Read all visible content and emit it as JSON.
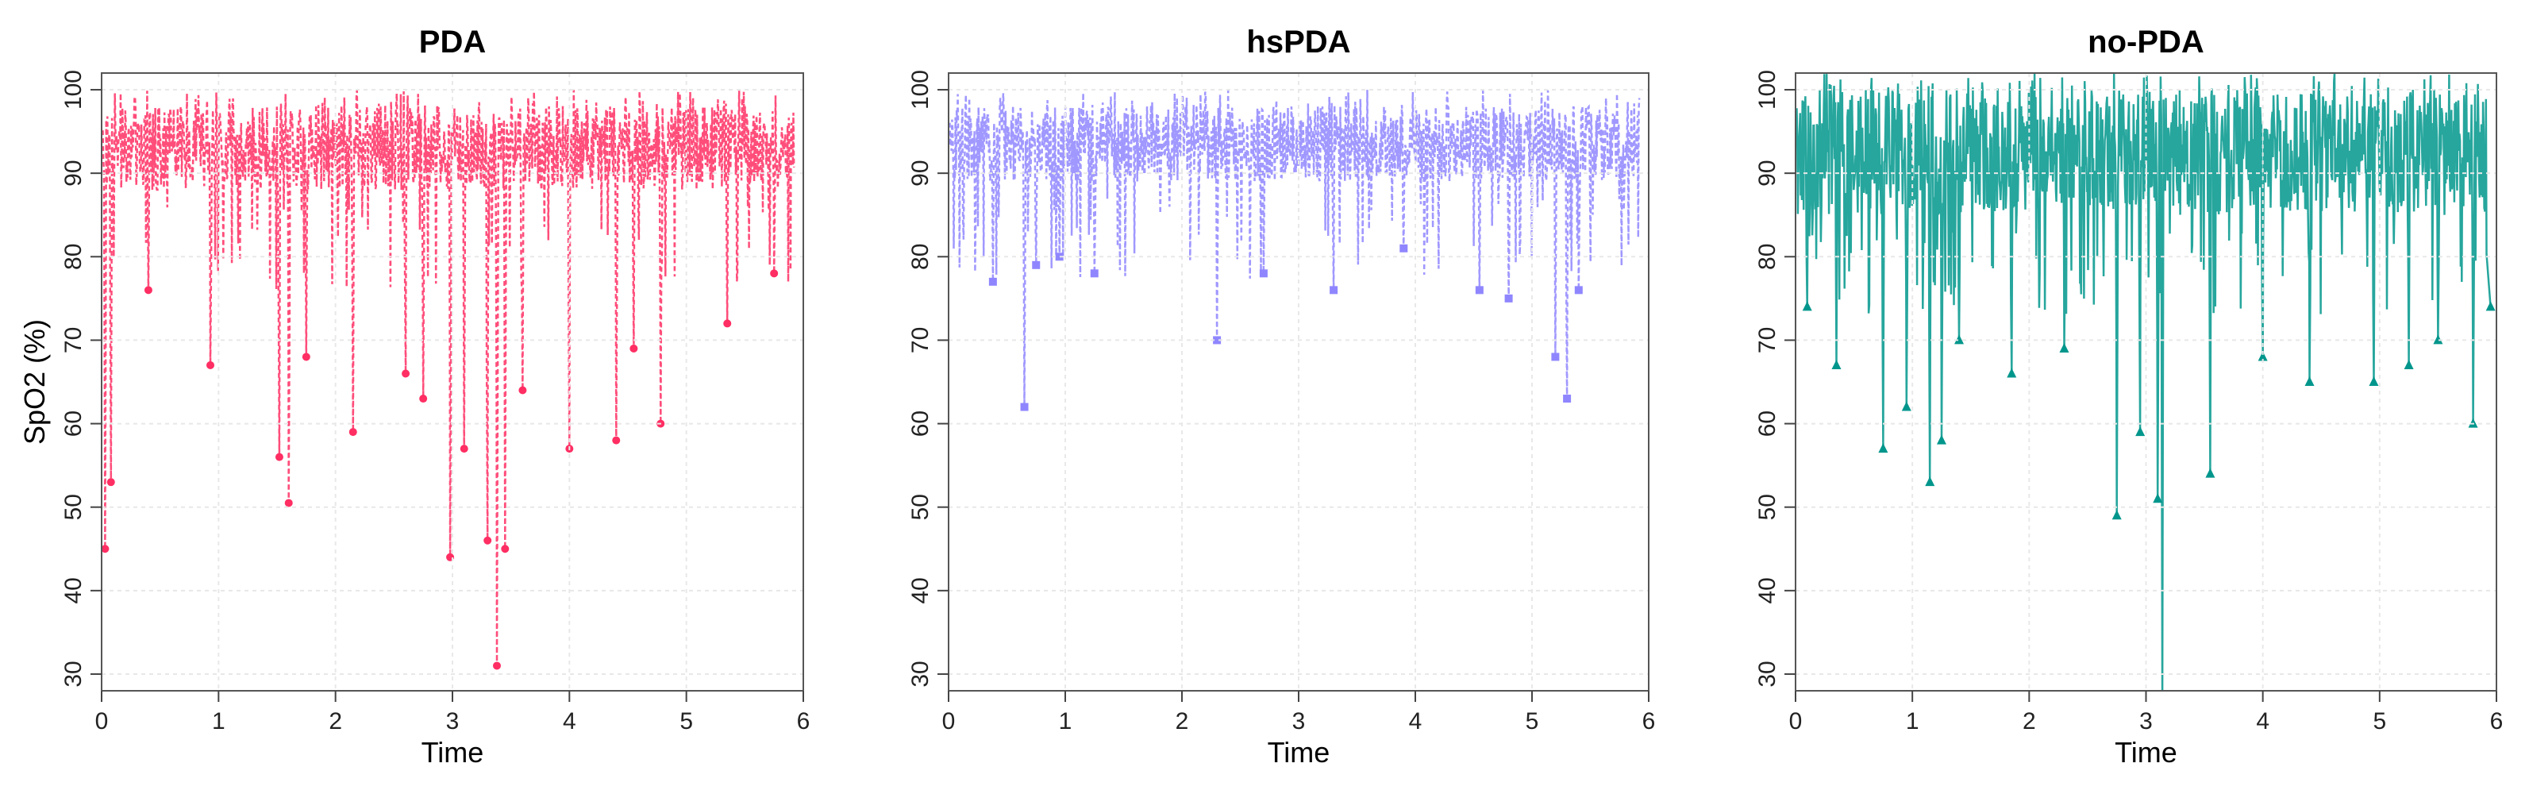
{
  "chart_data": [
    {
      "type": "line",
      "title": "PDA",
      "xlabel": "Time",
      "ylabel": "SpO2 (%)",
      "xlim": [
        0,
        6
      ],
      "ylim": [
        28,
        102
      ],
      "xticks": [
        0,
        1,
        2,
        3,
        4,
        5,
        6
      ],
      "yticks": [
        30,
        40,
        50,
        60,
        70,
        80,
        90,
        100
      ],
      "grid": true,
      "color": "#ff2e63",
      "line_style": "dashed",
      "marker": "circle",
      "band": [
        88,
        98
      ],
      "dips": [
        {
          "x": 0.03,
          "y": 45
        },
        {
          "x": 0.08,
          "y": 53
        },
        {
          "x": 0.4,
          "y": 76
        },
        {
          "x": 0.93,
          "y": 67
        },
        {
          "x": 1.52,
          "y": 56
        },
        {
          "x": 1.6,
          "y": 50.5
        },
        {
          "x": 1.75,
          "y": 68
        },
        {
          "x": 2.15,
          "y": 59
        },
        {
          "x": 2.6,
          "y": 66
        },
        {
          "x": 2.75,
          "y": 63
        },
        {
          "x": 2.98,
          "y": 44
        },
        {
          "x": 3.1,
          "y": 57
        },
        {
          "x": 3.3,
          "y": 46
        },
        {
          "x": 3.38,
          "y": 31
        },
        {
          "x": 3.45,
          "y": 45
        },
        {
          "x": 3.6,
          "y": 64
        },
        {
          "x": 4.0,
          "y": 57
        },
        {
          "x": 4.4,
          "y": 58
        },
        {
          "x": 4.55,
          "y": 69
        },
        {
          "x": 4.78,
          "y": 60
        },
        {
          "x": 5.35,
          "y": 72
        },
        {
          "x": 5.75,
          "y": 78
        }
      ]
    },
    {
      "type": "line",
      "title": "hsPDA",
      "xlabel": "Time",
      "ylabel": "",
      "xlim": [
        0,
        6
      ],
      "ylim": [
        28,
        102
      ],
      "xticks": [
        0,
        1,
        2,
        3,
        4,
        5,
        6
      ],
      "yticks": [
        30,
        40,
        50,
        60,
        70,
        80,
        90,
        100
      ],
      "grid": true,
      "color": "#8f86ff",
      "line_style": "dashed",
      "marker": "square",
      "band": [
        89,
        98
      ],
      "dips": [
        {
          "x": 0.38,
          "y": 77
        },
        {
          "x": 0.65,
          "y": 62
        },
        {
          "x": 0.75,
          "y": 79
        },
        {
          "x": 0.95,
          "y": 80
        },
        {
          "x": 1.25,
          "y": 78
        },
        {
          "x": 2.3,
          "y": 70
        },
        {
          "x": 2.7,
          "y": 78
        },
        {
          "x": 3.3,
          "y": 76
        },
        {
          "x": 3.9,
          "y": 81
        },
        {
          "x": 4.55,
          "y": 76
        },
        {
          "x": 4.8,
          "y": 75
        },
        {
          "x": 5.2,
          "y": 68
        },
        {
          "x": 5.3,
          "y": 63
        },
        {
          "x": 5.4,
          "y": 76
        }
      ]
    },
    {
      "type": "line",
      "title": "no-PDA",
      "xlabel": "Time",
      "ylabel": "",
      "xlim": [
        0,
        6
      ],
      "ylim": [
        28,
        102
      ],
      "xticks": [
        0,
        1,
        2,
        3,
        4,
        5,
        6
      ],
      "yticks": [
        30,
        40,
        50,
        60,
        70,
        80,
        90,
        100
      ],
      "grid": true,
      "color": "#00968c",
      "line_style": "solid",
      "marker": "triangle",
      "band": [
        85,
        100
      ],
      "dips": [
        {
          "x": 0.1,
          "y": 74
        },
        {
          "x": 0.35,
          "y": 67
        },
        {
          "x": 0.75,
          "y": 57
        },
        {
          "x": 0.95,
          "y": 62
        },
        {
          "x": 1.15,
          "y": 53
        },
        {
          "x": 1.25,
          "y": 58
        },
        {
          "x": 1.4,
          "y": 70
        },
        {
          "x": 1.85,
          "y": 66
        },
        {
          "x": 2.3,
          "y": 69
        },
        {
          "x": 2.75,
          "y": 49
        },
        {
          "x": 2.95,
          "y": 59
        },
        {
          "x": 3.1,
          "y": 51
        },
        {
          "x": 3.14,
          "y": 27
        },
        {
          "x": 3.55,
          "y": 54
        },
        {
          "x": 4.0,
          "y": 68
        },
        {
          "x": 4.4,
          "y": 65
        },
        {
          "x": 4.95,
          "y": 65
        },
        {
          "x": 5.25,
          "y": 67
        },
        {
          "x": 5.5,
          "y": 70
        },
        {
          "x": 5.8,
          "y": 60
        },
        {
          "x": 5.95,
          "y": 74
        }
      ]
    }
  ]
}
